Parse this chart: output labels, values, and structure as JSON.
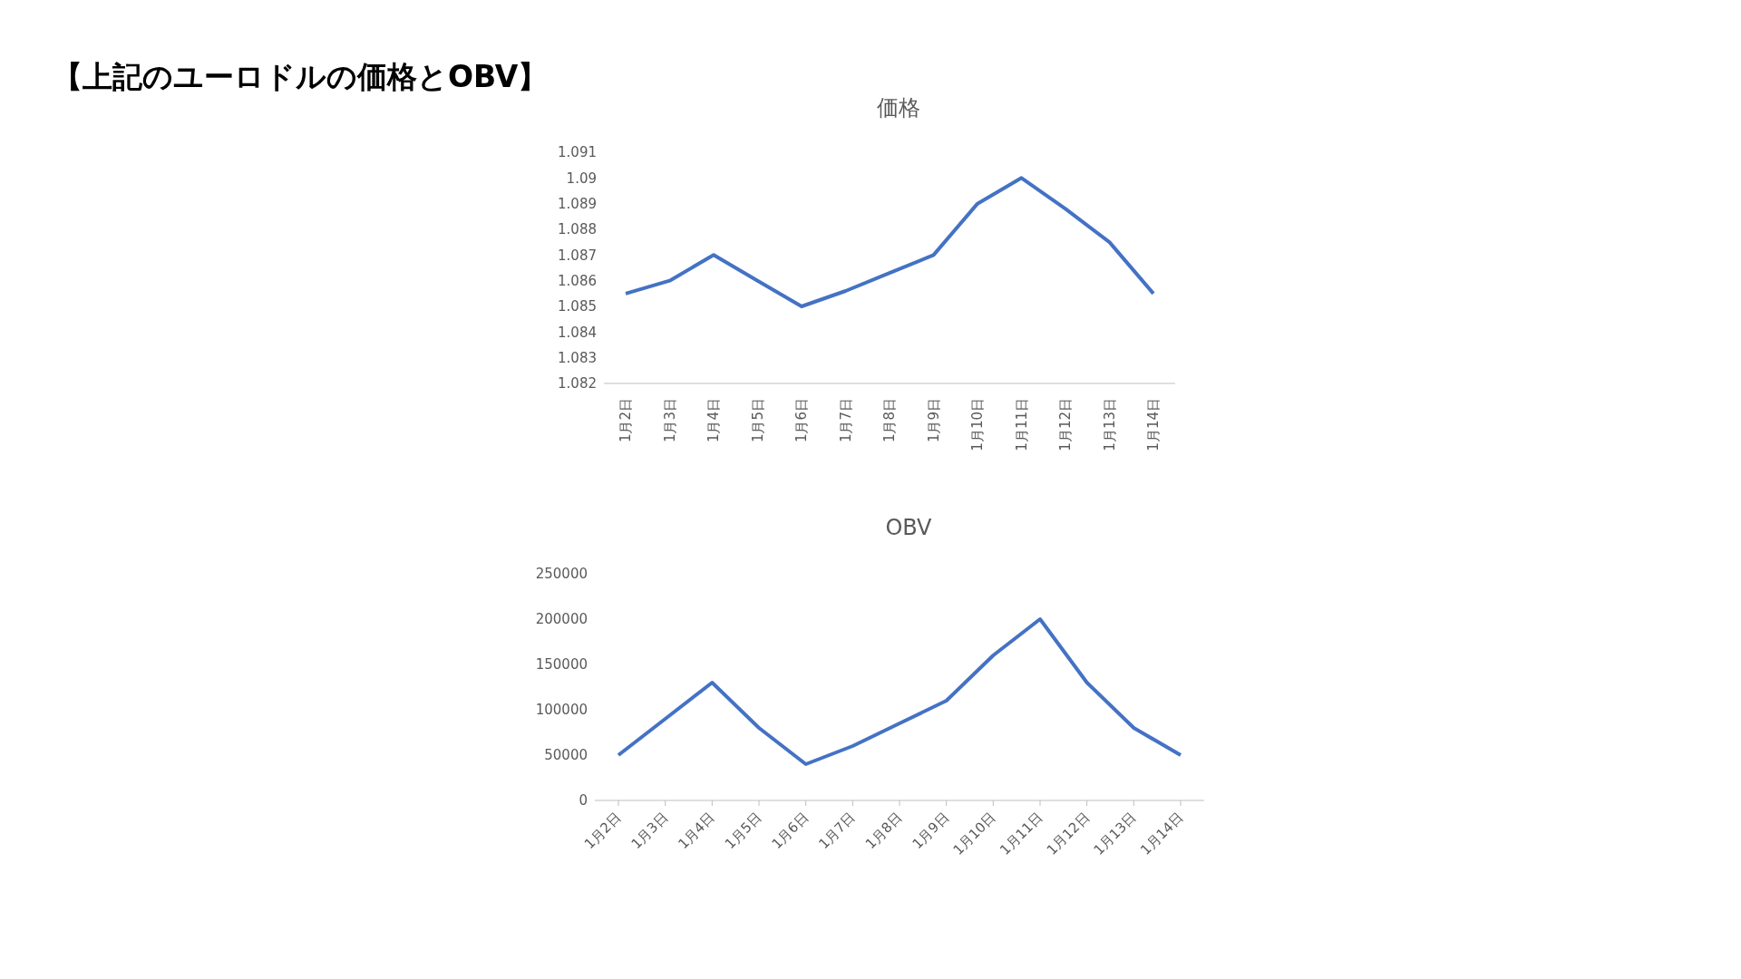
{
  "chart_data": [
    {
      "type": "other",
      "title": "【上記のユーロドルの価格とOBV】"
    },
    {
      "type": "line",
      "title": "価格",
      "categories": [
        "1月2日",
        "1月3日",
        "1月4日",
        "1月5日",
        "1月6日",
        "1月7日",
        "1月8日",
        "1月9日",
        "1月10日",
        "1月11日",
        "1月12日",
        "1月13日",
        "1月14日"
      ],
      "values": [
        1.0855,
        1.086,
        1.087,
        1.086,
        1.085,
        1.0856,
        1.0863,
        1.087,
        1.089,
        1.09,
        1.0888,
        1.0875,
        1.0855
      ],
      "color": "#4472c4",
      "ylim": [
        1.082,
        1.091
      ],
      "yticks": [
        1.082,
        1.083,
        1.084,
        1.085,
        1.086,
        1.087,
        1.088,
        1.089,
        1.09,
        1.091
      ],
      "marker": "none"
    },
    {
      "type": "line",
      "title": "OBV",
      "categories": [
        "1月2日",
        "1月3日",
        "1月4日",
        "1月5日",
        "1月6日",
        "1月7日",
        "1月8日",
        "1月9日",
        "1月10日",
        "1月11日",
        "1月12日",
        "1月13日",
        "1月14日"
      ],
      "values": [
        50000,
        90000,
        130000,
        80000,
        40000,
        60000,
        85000,
        110000,
        160000,
        200000,
        130000,
        80000,
        50000
      ],
      "color": "#4472c4",
      "ylim": [
        0,
        250000
      ],
      "yticks": [
        0,
        50000,
        100000,
        150000,
        200000,
        250000
      ],
      "marker": "none"
    }
  ]
}
